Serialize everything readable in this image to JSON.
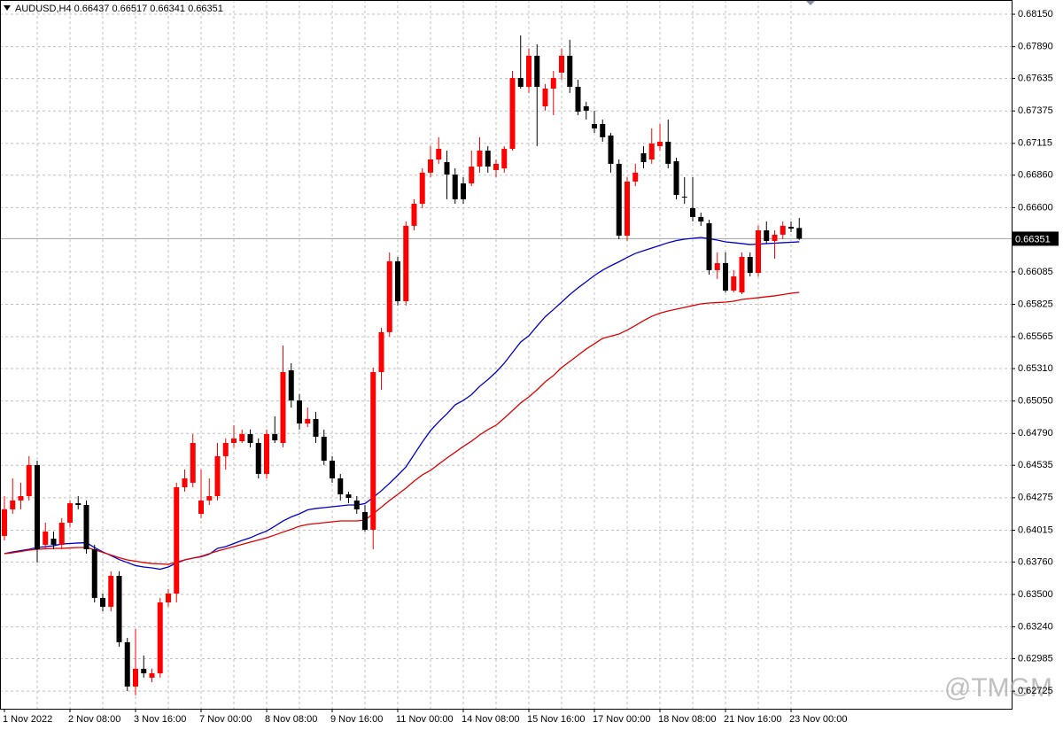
{
  "chart_data": {
    "type": "candlestick",
    "title": "AUDUSD,H4  0.66437 0.66517 0.66341 0.66351",
    "watermark": "@TMGM",
    "categories": [
      "1 Nov 2022",
      null,
      null,
      null,
      null,
      null,
      null,
      null,
      "2 Nov 08:00",
      null,
      null,
      null,
      null,
      null,
      null,
      null,
      "3 Nov 16:00",
      null,
      null,
      null,
      null,
      null,
      null,
      null,
      "7 Nov 00:00",
      null,
      null,
      null,
      null,
      null,
      null,
      null,
      "8 Nov 08:00",
      null,
      null,
      null,
      null,
      null,
      null,
      null,
      "9 Nov 16:00",
      null,
      null,
      null,
      null,
      null,
      null,
      null,
      "11 Nov 00:00",
      null,
      null,
      null,
      null,
      null,
      null,
      null,
      "14 Nov 08:00",
      null,
      null,
      null,
      null,
      null,
      null,
      null,
      "15 Nov 16:00",
      null,
      null,
      null,
      null,
      null,
      null,
      null,
      "17 Nov 00:00",
      null,
      null,
      null,
      null,
      null,
      null,
      null,
      "18 Nov 08:00",
      null,
      null,
      null,
      null,
      null,
      null,
      null,
      "21 Nov 16:00",
      null,
      null,
      null,
      null,
      null,
      null,
      null,
      "23 Nov 00:00",
      null
    ],
    "open": [
      0.63969,
      0.64182,
      0.64253,
      0.64288,
      0.64537,
      0.63898,
      0.63947,
      0.63898,
      0.64075,
      0.64231,
      0.64217,
      0.63862,
      0.63472,
      0.63401,
      0.63649,
      0.63117,
      0.62762,
      0.62904,
      0.62833,
      0.62868,
      0.63436,
      0.63507,
      0.64359,
      0.64395,
      0.64146,
      0.64253,
      0.64288,
      0.64608,
      0.64714,
      0.64728,
      0.64785,
      0.64714,
      0.64466,
      0.64785,
      0.64714,
      0.65296,
      0.65055,
      0.6487,
      0.64906,
      0.64764,
      0.64572,
      0.6443,
      0.64302,
      0.64253,
      0.6416,
      0.64018,
      0.65282,
      0.65602,
      0.6617,
      0.6585,
      0.66454,
      0.66631,
      0.6688,
      0.66986,
      0.66965,
      0.66865,
      0.66794,
      0.66794,
      0.66929,
      0.67057,
      0.66901,
      0.66915,
      0.67071,
      0.67639,
      0.67568,
      0.67817,
      0.67412,
      0.67554,
      0.67682,
      0.67817,
      0.67568,
      0.67412,
      0.6727,
      0.6727,
      0.67178,
      0.66951,
      0.66375,
      0.66809,
      0.67036,
      0.66986,
      0.67093,
      0.67128,
      0.66972,
      0.66688,
      0.66596,
      0.66525,
      0.66475,
      0.66099,
      0.66155,
      0.65935,
      0.65921,
      0.66205,
      0.66077,
      0.66418,
      0.66333,
      0.66383,
      0.66446,
      0.66437
    ],
    "high": [
      0.64288,
      0.6443,
      0.64395,
      0.64608,
      0.64572,
      0.64075,
      0.64004,
      0.64111,
      0.64253,
      0.64288,
      0.64253,
      0.63898,
      0.63507,
      0.63685,
      0.63685,
      0.63152,
      0.63223,
      0.6301,
      0.62904,
      0.63472,
      0.63543,
      0.64395,
      0.64501,
      0.64785,
      0.64501,
      0.6443,
      0.64714,
      0.6475,
      0.64856,
      0.64821,
      0.64821,
      0.6475,
      0.64821,
      0.64927,
      0.65495,
      0.65353,
      0.65105,
      0.64998,
      0.64963,
      0.64821,
      0.64608,
      0.64466,
      0.64324,
      0.64288,
      0.64217,
      0.65318,
      0.65637,
      0.66241,
      0.66205,
      0.66489,
      0.66667,
      0.66915,
      0.67093,
      0.67164,
      0.67057,
      0.66915,
      0.66844,
      0.67057,
      0.67164,
      0.67093,
      0.66986,
      0.67093,
      0.67696,
      0.6798,
      0.67874,
      0.67909,
      0.6759,
      0.67696,
      0.67874,
      0.67945,
      0.67625,
      0.67448,
      0.67377,
      0.67306,
      0.67199,
      0.66986,
      0.66844,
      0.66951,
      0.67093,
      0.67235,
      0.6727,
      0.67306,
      0.67,
      0.66844,
      0.66844,
      0.6656,
      0.66503,
      0.66241,
      0.66241,
      0.66099,
      0.66241,
      0.66241,
      0.66454,
      0.66489,
      0.66418,
      0.66489,
      0.66489,
      0.66517
    ],
    "low": [
      0.63933,
      0.64146,
      0.64182,
      0.64253,
      0.63756,
      0.63862,
      0.63862,
      0.63862,
      0.6404,
      0.64182,
      0.63827,
      0.63436,
      0.63365,
      0.63365,
      0.63081,
      0.62726,
      0.62691,
      0.62833,
      0.62797,
      0.62833,
      0.63401,
      0.63436,
      0.64324,
      0.64359,
      0.64111,
      0.64217,
      0.64253,
      0.64501,
      0.64679,
      0.64714,
      0.64679,
      0.6443,
      0.6443,
      0.64714,
      0.64679,
      0.64998,
      0.64821,
      0.64842,
      0.64714,
      0.64537,
      0.64395,
      0.64253,
      0.64231,
      0.64146,
      0.64004,
      0.63862,
      0.6514,
      0.65566,
      0.65815,
      0.65815,
      0.66418,
      0.66596,
      0.66844,
      0.66951,
      0.66667,
      0.66631,
      0.66631,
      0.66773,
      0.6688,
      0.6688,
      0.66844,
      0.6688,
      0.67057,
      0.67554,
      0.67519,
      0.67093,
      0.67377,
      0.67341,
      0.67625,
      0.67519,
      0.67341,
      0.67306,
      0.67199,
      0.67128,
      0.6688,
      0.66347,
      0.66333,
      0.66773,
      0.66915,
      0.66951,
      0.67057,
      0.66915,
      0.66667,
      0.66631,
      0.66489,
      0.66454,
      0.66063,
      0.66028,
      0.65921,
      0.65921,
      0.65907,
      0.66049,
      0.66049,
      0.66312,
      0.66191,
      0.66347,
      0.66404,
      0.66341
    ],
    "close": [
      0.64182,
      0.64253,
      0.64288,
      0.64537,
      0.63862,
      0.64004,
      0.63898,
      0.64075,
      0.64231,
      0.64217,
      0.63862,
      0.63472,
      0.63401,
      0.63649,
      0.63117,
      0.62762,
      0.62904,
      0.62868,
      0.62868,
      0.63436,
      0.63507,
      0.64359,
      0.6443,
      0.64714,
      0.64253,
      0.64288,
      0.64608,
      0.64714,
      0.6475,
      0.64785,
      0.64714,
      0.64466,
      0.64785,
      0.64735,
      0.65282,
      0.65055,
      0.6487,
      0.64906,
      0.64764,
      0.64572,
      0.6443,
      0.64302,
      0.64274,
      0.64182,
      0.64018,
      0.65282,
      0.65602,
      0.6617,
      0.6585,
      0.66454,
      0.66631,
      0.6688,
      0.66986,
      0.67071,
      0.66865,
      0.66667,
      0.66667,
      0.66929,
      0.67057,
      0.66929,
      0.66951,
      0.67071,
      0.67639,
      0.67568,
      0.67817,
      0.67568,
      0.67554,
      0.67639,
      0.67817,
      0.67568,
      0.67369,
      0.67377,
      0.67235,
      0.67164,
      0.66951,
      0.66375,
      0.66809,
      0.6688,
      0.66965,
      0.67114,
      0.67128,
      0.66951,
      0.66702,
      0.66681,
      0.66525,
      0.66489,
      0.66099,
      0.66155,
      0.65935,
      0.66049,
      0.66205,
      0.66077,
      0.66418,
      0.66333,
      0.66383,
      0.66454,
      0.66432,
      0.66351
    ],
    "up_color": "#ff0000",
    "down_color": "#000000",
    "lines": [
      {
        "color": "#0000c8",
        "values": [
          0.63827,
          0.63841,
          0.63851,
          0.63862,
          0.63876,
          0.63883,
          0.6389,
          0.63905,
          0.63908,
          0.63912,
          0.63915,
          0.63876,
          0.63841,
          0.63812,
          0.6378,
          0.63756,
          0.63731,
          0.6372,
          0.63713,
          0.63702,
          0.6372,
          0.63752,
          0.63777,
          0.63791,
          0.63802,
          0.63823,
          0.63869,
          0.63883,
          0.63908,
          0.63933,
          0.63954,
          0.63983,
          0.64008,
          0.64047,
          0.64089,
          0.64121,
          0.64146,
          0.64178,
          0.64189,
          0.64196,
          0.64203,
          0.6421,
          0.64217,
          0.64217,
          0.64228,
          0.64277,
          0.64331,
          0.64391,
          0.64455,
          0.64522,
          0.64622,
          0.64721,
          0.64813,
          0.64884,
          0.64948,
          0.65019,
          0.65055,
          0.65101,
          0.65168,
          0.65222,
          0.65282,
          0.65353,
          0.65438,
          0.65523,
          0.65573,
          0.65651,
          0.65726,
          0.65783,
          0.65843,
          0.65903,
          0.65957,
          0.66006,
          0.66056,
          0.66099,
          0.66134,
          0.66166,
          0.66201,
          0.66233,
          0.66255,
          0.66276,
          0.66297,
          0.66319,
          0.66336,
          0.66347,
          0.66354,
          0.66361,
          0.66351,
          0.6634,
          0.66326,
          0.66319,
          0.66312,
          0.66304,
          0.66308,
          0.66312,
          0.66315,
          0.66319,
          0.66322,
          0.66326
        ]
      },
      {
        "color": "#e00000",
        "values": [
          0.63827,
          0.63834,
          0.63844,
          0.63855,
          0.63862,
          0.63866,
          0.63869,
          0.63869,
          0.63873,
          0.63876,
          0.63876,
          0.63858,
          0.63837,
          0.63816,
          0.63795,
          0.63777,
          0.63766,
          0.63756,
          0.63748,
          0.63745,
          0.63741,
          0.63759,
          0.63777,
          0.63791,
          0.63805,
          0.63827,
          0.63848,
          0.63866,
          0.63883,
          0.63901,
          0.63919,
          0.63937,
          0.63954,
          0.63976,
          0.64,
          0.64022,
          0.64047,
          0.64061,
          0.64068,
          0.64075,
          0.64082,
          0.64089,
          0.64089,
          0.64089,
          0.64096,
          0.64146,
          0.64199,
          0.64253,
          0.64302,
          0.64352,
          0.64409,
          0.64458,
          0.64494,
          0.64544,
          0.64593,
          0.64639,
          0.64686,
          0.64728,
          0.64778,
          0.64821,
          0.64856,
          0.64913,
          0.64973,
          0.65034,
          0.65083,
          0.6514,
          0.65204,
          0.65254,
          0.65318,
          0.65367,
          0.65417,
          0.65467,
          0.65509,
          0.65552,
          0.6557,
          0.65587,
          0.65619,
          0.65655,
          0.65694,
          0.65729,
          0.65754,
          0.65772,
          0.65786,
          0.658,
          0.65815,
          0.65829,
          0.65836,
          0.65839,
          0.65843,
          0.6585,
          0.65864,
          0.65871,
          0.65878,
          0.65886,
          0.65893,
          0.65903,
          0.65914,
          0.65921
        ]
      }
    ],
    "current_price": 0.66351,
    "ylim": [
      0.62584,
      0.68264
    ],
    "yticks": [
      {
        "value": 0.6815,
        "label": "0.68150"
      },
      {
        "value": 0.6789,
        "label": "0.67890"
      },
      0.67635,
      0.67375,
      0.67115,
      {
        "value": 0.6686,
        "label": "0.66860"
      },
      {
        "value": 0.666,
        "label": "0.66600"
      },
      0.66085,
      0.65825,
      0.65565,
      {
        "value": 0.6531,
        "label": "0.65310"
      },
      {
        "value": 0.6505,
        "label": "0.65050"
      },
      {
        "value": 0.6479,
        "label": "0.64790"
      },
      0.64535,
      0.64275,
      0.64015,
      {
        "value": 0.6376,
        "label": "0.63760"
      },
      {
        "value": 0.635,
        "label": "0.63500"
      },
      {
        "value": 0.6324,
        "label": "0.63240"
      },
      0.62985,
      {
        "value": 0.62725,
        "label": "0.62725"
      }
    ],
    "grid": true
  }
}
